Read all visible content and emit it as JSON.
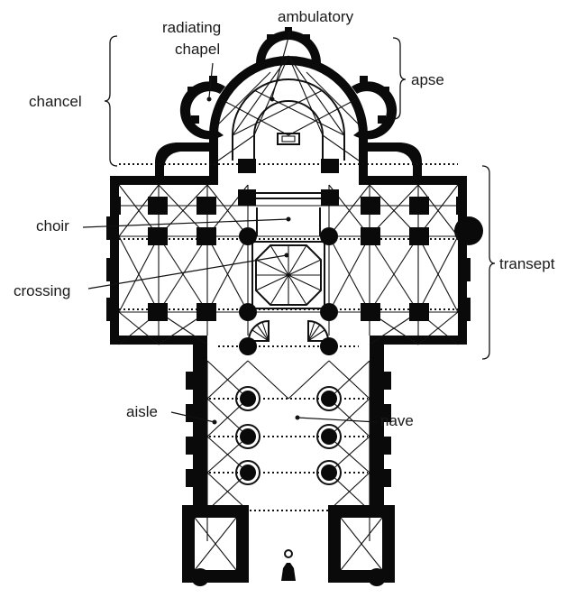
{
  "labels": {
    "ambulatory": "ambulatory",
    "radiating_chapel_line1": "radiating",
    "radiating_chapel_line2": "chapel",
    "chancel": "chancel",
    "apse": "apse",
    "choir": "choir",
    "crossing": "crossing",
    "transept": "transept",
    "aisle": "aisle",
    "nave": "nave"
  },
  "colors": {
    "ink": "#0a0a0a",
    "background": "#ffffff"
  }
}
